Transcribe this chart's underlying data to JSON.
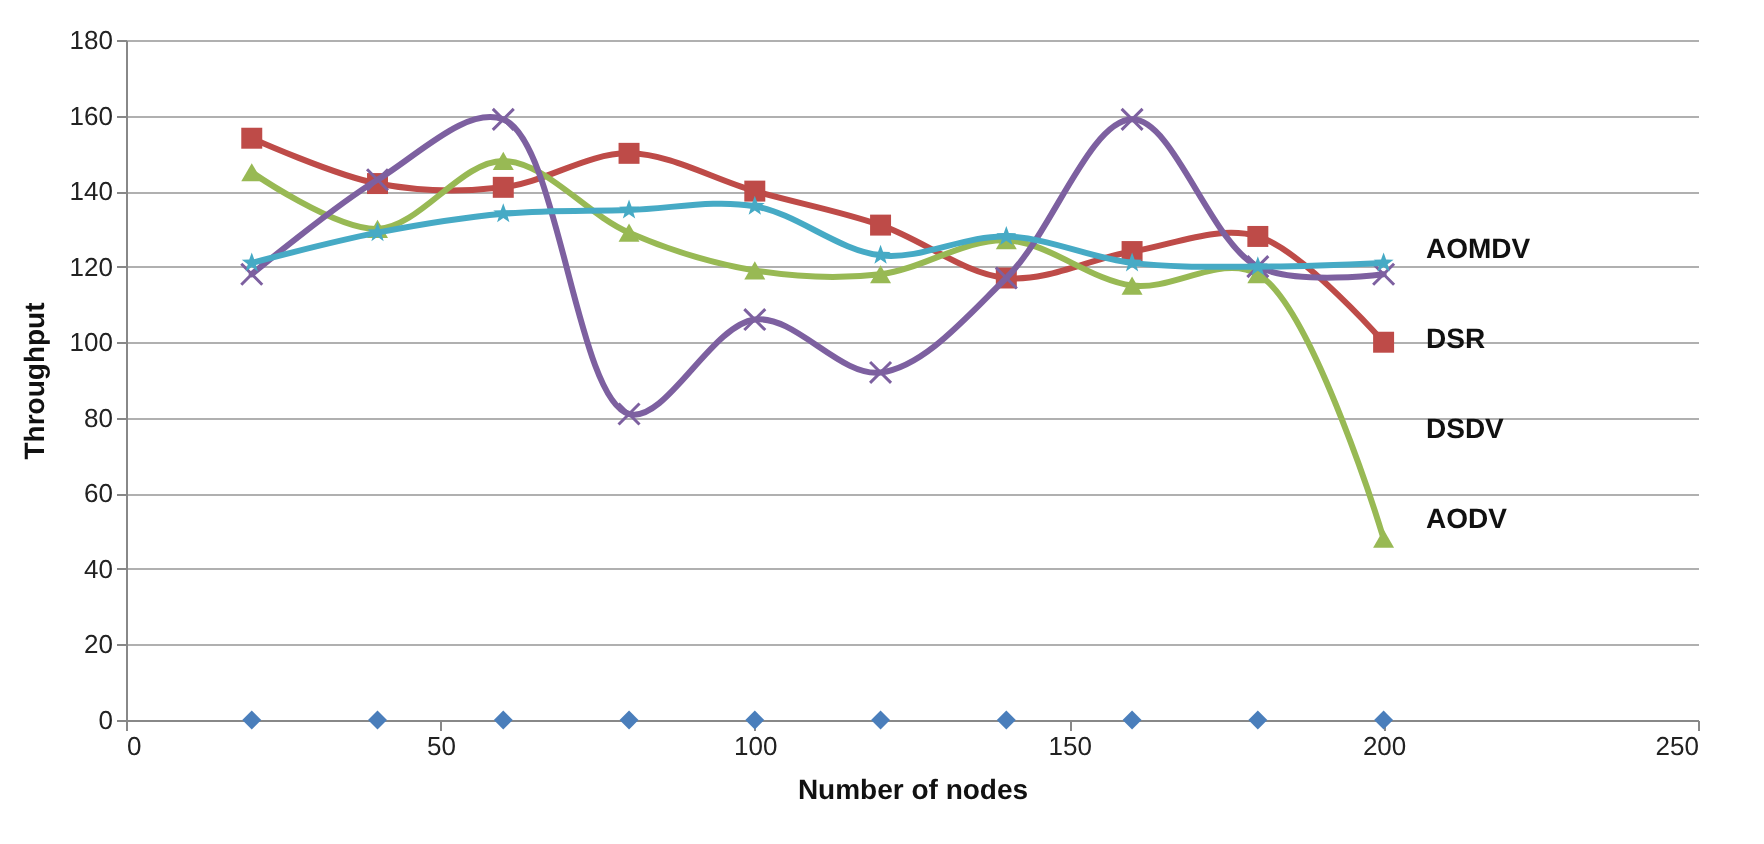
{
  "chart_data": {
    "type": "line",
    "xlabel": "Number of nodes",
    "ylabel": "Throughput",
    "x": [
      20,
      40,
      60,
      80,
      100,
      120,
      140,
      160,
      180,
      200
    ],
    "xlim": [
      0,
      250
    ],
    "xticks": [
      0,
      50,
      100,
      150,
      200,
      250
    ],
    "ylim": [
      0,
      180
    ],
    "yticks": [
      0,
      20,
      40,
      60,
      80,
      100,
      120,
      140,
      160,
      180
    ],
    "grid": "y",
    "line_style": "solid",
    "series": [
      {
        "type": "scatter",
        "color": "#4a7ebb",
        "marker": "diamond",
        "values": [
          0,
          0,
          0,
          0,
          0,
          0,
          0,
          0,
          0,
          0
        ]
      },
      {
        "color": "#be4b48",
        "marker": "square",
        "values": [
          154,
          142,
          141,
          150,
          140,
          131,
          117,
          124,
          128,
          100
        ]
      },
      {
        "color": "#98b954",
        "marker": "triangle",
        "values": [
          145,
          130,
          148,
          129,
          119,
          118,
          127,
          115,
          118,
          48
        ]
      },
      {
        "color": "#7d60a0",
        "marker": "cross",
        "values": [
          118,
          143,
          159,
          81,
          106,
          92,
          117,
          159,
          120,
          118
        ]
      },
      {
        "color": "#46aac5",
        "marker": "star",
        "values": [
          121,
          129,
          134,
          135,
          136,
          123,
          128,
          121,
          120,
          121
        ]
      }
    ],
    "annotations": [
      "AOMDV",
      "DSR",
      "DSDV",
      "AODV"
    ]
  }
}
